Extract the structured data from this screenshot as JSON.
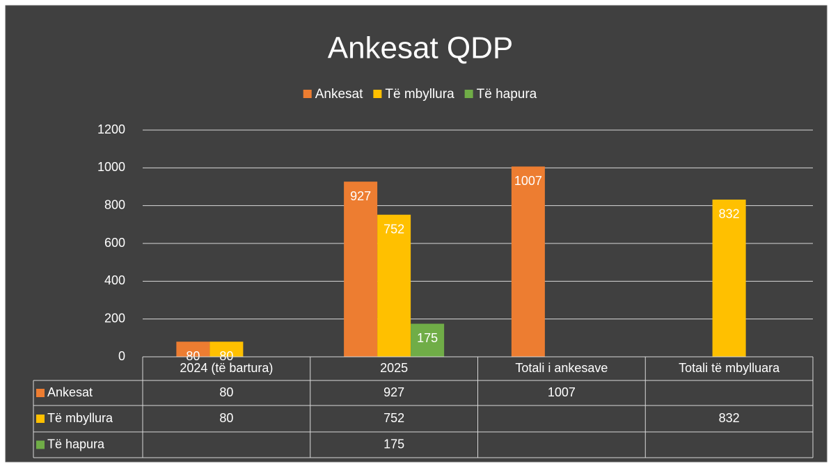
{
  "chart_data": {
    "type": "bar",
    "title": "Ankesat QDP",
    "categories": [
      "2024 (të bartura)",
      "2025",
      "Totali i ankesave",
      "Totali të mbylluara"
    ],
    "series": [
      {
        "name": "Ankesat",
        "color": "#ed7d31",
        "values": [
          80,
          927,
          1007,
          null
        ]
      },
      {
        "name": "Të mbyllura",
        "color": "#ffc000",
        "values": [
          80,
          752,
          null,
          832
        ]
      },
      {
        "name": "Të hapura",
        "color": "#70ad47",
        "values": [
          null,
          175,
          null,
          null
        ]
      }
    ],
    "ylim": [
      0,
      1200
    ],
    "yticks": [
      0,
      200,
      400,
      600,
      800,
      1000,
      1200
    ],
    "grid": true,
    "legend": "top"
  }
}
